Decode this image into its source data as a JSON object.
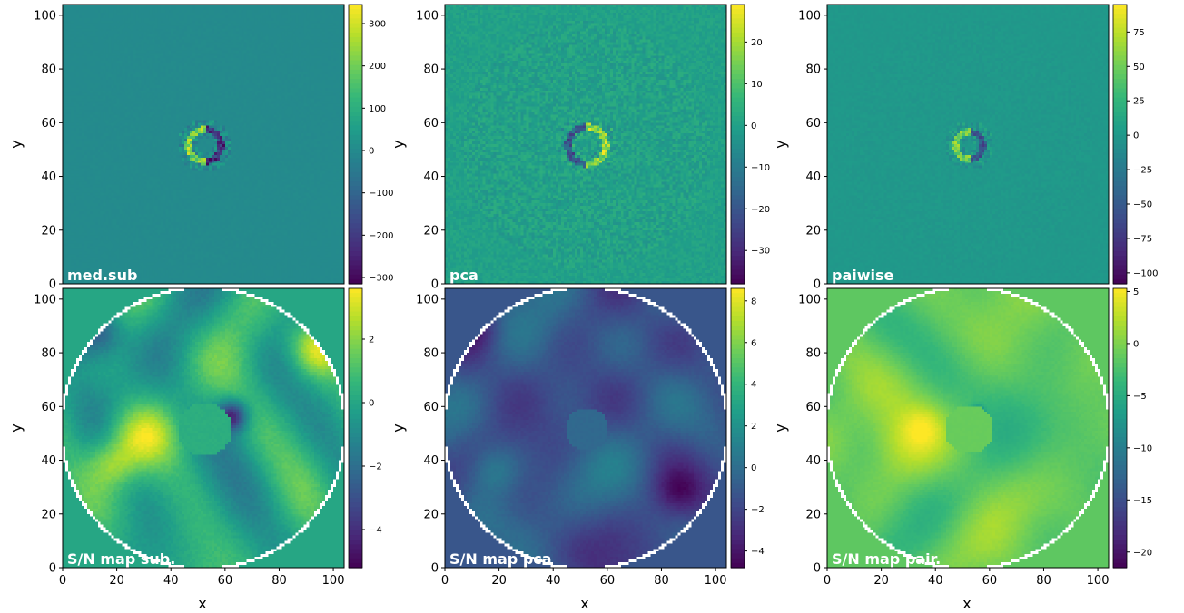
{
  "colormap": "viridis",
  "colors": {
    "viridis": [
      "#440154",
      "#482878",
      "#3e4989",
      "#31688e",
      "#26828e",
      "#1f9e89",
      "#35b779",
      "#6ece58",
      "#b5de2b",
      "#fde725"
    ],
    "panel_label_color": "#ffffff",
    "outside_mask_color": "#ffffff"
  },
  "chart_data": [
    {
      "type": "heatmap",
      "name": "med.sub",
      "label": "med.sub",
      "xlabel": "",
      "ylabel": "y",
      "xlim": [
        0,
        103
      ],
      "ylim": [
        0,
        103
      ],
      "xticks": [],
      "yticks": [
        0,
        20,
        40,
        60,
        80,
        100
      ],
      "colorbar": {
        "vmin": -315,
        "vmax": 345,
        "ticks": [
          -300,
          -200,
          -100,
          0,
          100,
          200,
          300
        ]
      },
      "background_value": 0,
      "noise_amplitude": 4,
      "masked_outside_radius": null,
      "features": [
        {
          "kind": "ring",
          "x": 52,
          "y": 51,
          "r": 6,
          "amp": 260,
          "negative_side": "right"
        }
      ]
    },
    {
      "type": "heatmap",
      "name": "pca",
      "label": "pca",
      "xlabel": "",
      "ylabel": "y",
      "xlim": [
        0,
        103
      ],
      "ylim": [
        0,
        103
      ],
      "xticks": [],
      "yticks": [
        0,
        20,
        40,
        60,
        80,
        100
      ],
      "colorbar": {
        "vmin": -38,
        "vmax": 29,
        "ticks": [
          -30,
          -20,
          -10,
          0,
          10,
          20
        ]
      },
      "background_value": 0,
      "noise_amplitude": 4,
      "masked_outside_radius": null,
      "features": [
        {
          "kind": "ring",
          "x": 52,
          "y": 51,
          "r": 7,
          "amp": 22,
          "negative_side": "left"
        }
      ]
    },
    {
      "type": "heatmap",
      "name": "paiwise",
      "label": "paiwise",
      "xlabel": "",
      "ylabel": "y",
      "xlim": [
        0,
        103
      ],
      "ylim": [
        0,
        103
      ],
      "xticks": [],
      "yticks": [
        0,
        20,
        40,
        60,
        80,
        100
      ],
      "colorbar": {
        "vmin": -108,
        "vmax": 95,
        "ticks": [
          -100,
          -75,
          -50,
          -25,
          0,
          25,
          50,
          75
        ]
      },
      "background_value": 0,
      "noise_amplitude": 3,
      "masked_outside_radius": null,
      "features": [
        {
          "kind": "ring",
          "x": 52,
          "y": 51,
          "r": 5,
          "amp": 60,
          "negative_side": "right"
        }
      ]
    },
    {
      "type": "heatmap",
      "name": "S/N map sub.",
      "label": "S/N map sub.",
      "xlabel": "x",
      "ylabel": "y",
      "xlim": [
        0,
        103
      ],
      "ylim": [
        0,
        103
      ],
      "xticks": [
        0,
        20,
        40,
        60,
        80,
        100
      ],
      "yticks": [
        0,
        20,
        40,
        60,
        80,
        100
      ],
      "colorbar": {
        "vmin": -5.2,
        "vmax": 3.6,
        "ticks": [
          -4,
          -2,
          0,
          2
        ]
      },
      "background_value": 0,
      "noise_amplitude": 1.2,
      "masked_outside_radius": 52,
      "features": [
        {
          "kind": "blob",
          "x": 28,
          "y": 48,
          "s": 8,
          "amp": 2.6
        },
        {
          "kind": "blob",
          "x": 93,
          "y": 81,
          "s": 7,
          "amp": 3.0
        },
        {
          "kind": "blob",
          "x": 62,
          "y": 56,
          "s": 4,
          "amp": -4.5
        },
        {
          "kind": "blob",
          "x": 12,
          "y": 87,
          "s": 7,
          "amp": -3.0
        },
        {
          "kind": "blob",
          "x": 18,
          "y": 38,
          "s": 6,
          "amp": 1.8
        },
        {
          "kind": "flat_disk",
          "x": 52,
          "y": 51,
          "r": 10,
          "value": 0.3
        }
      ]
    },
    {
      "type": "heatmap",
      "name": "S/N map pca",
      "label": "S/N map pca",
      "xlabel": "x",
      "ylabel": "y",
      "xlim": [
        0,
        103
      ],
      "ylim": [
        0,
        103
      ],
      "xticks": [
        0,
        20,
        40,
        60,
        80,
        100
      ],
      "yticks": [
        0,
        20,
        40,
        60,
        80,
        100
      ],
      "colorbar": {
        "vmin": -4.8,
        "vmax": 8.6,
        "ticks": [
          -4,
          -2,
          0,
          2,
          4,
          6,
          8
        ]
      },
      "background_value": -1.2,
      "noise_amplitude": 1.2,
      "masked_outside_radius": 52,
      "features": [
        {
          "kind": "blob",
          "x": 18,
          "y": 36,
          "s": 6,
          "amp": 1.8
        },
        {
          "kind": "blob",
          "x": 10,
          "y": 90,
          "s": 6,
          "amp": -2.5
        },
        {
          "kind": "blob",
          "x": 85,
          "y": 28,
          "s": 6,
          "amp": -2.0
        },
        {
          "kind": "flat_disk",
          "x": 52,
          "y": 51,
          "r": 8,
          "value": -0.3
        }
      ]
    },
    {
      "type": "heatmap",
      "name": "S/N map pair.",
      "label": "S/N map pair.",
      "xlabel": "x",
      "ylabel": "y",
      "xlim": [
        0,
        103
      ],
      "ylim": [
        0,
        103
      ],
      "xticks": [
        0,
        20,
        40,
        60,
        80,
        100
      ],
      "yticks": [
        0,
        20,
        40,
        60,
        80,
        100
      ],
      "colorbar": {
        "vmin": -21.5,
        "vmax": 5.3,
        "ticks": [
          -20,
          -15,
          -10,
          -5,
          0,
          5
        ]
      },
      "background_value": -1.5,
      "noise_amplitude": 1.8,
      "masked_outside_radius": 52,
      "features": [
        {
          "kind": "blob",
          "x": 27,
          "y": 45,
          "s": 9,
          "amp": 3.2
        },
        {
          "kind": "blob",
          "x": 35,
          "y": 52,
          "s": 5,
          "amp": 2.5
        },
        {
          "kind": "blob",
          "x": 55,
          "y": 57,
          "s": 1.5,
          "amp": -18
        },
        {
          "kind": "flat_disk",
          "x": 52,
          "y": 51,
          "r": 9,
          "value": -1.0
        }
      ]
    }
  ]
}
